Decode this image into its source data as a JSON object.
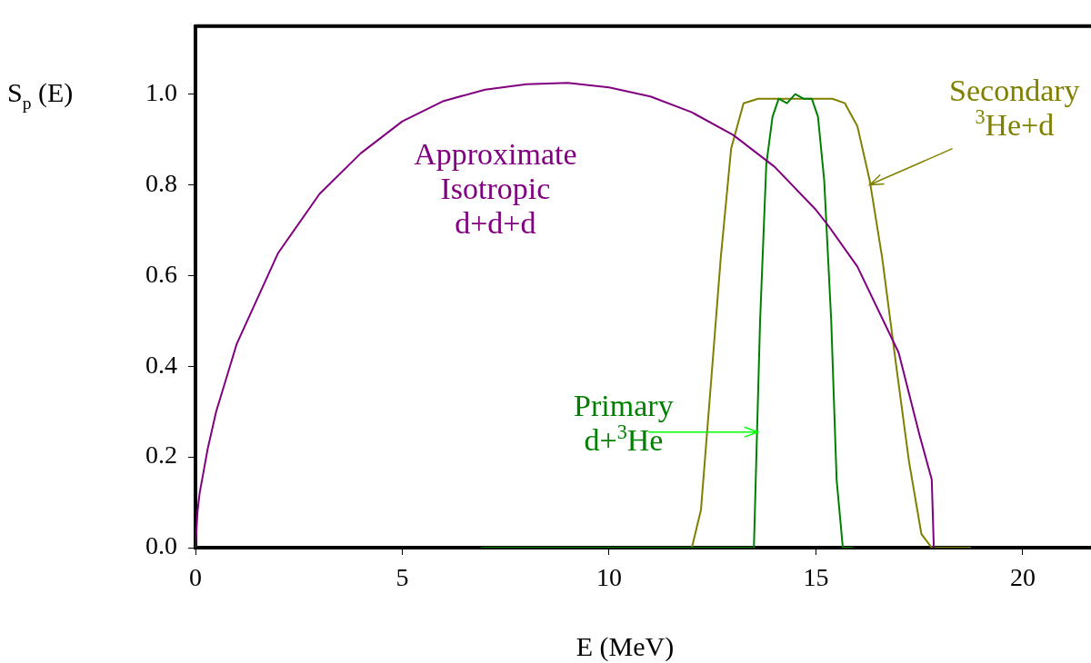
{
  "chart_data": {
    "type": "line",
    "xlabel": "E (MeV)",
    "ylabel": "S$_{p}$ (E)",
    "xlim": [
      0,
      21.65
    ],
    "xticks": [
      0,
      5,
      10,
      15,
      20
    ],
    "ylim": [
      0,
      1.15
    ],
    "yticks": [
      {
        "value": 0,
        "label": "0.0"
      },
      0.2,
      0.4,
      0.6,
      0.8,
      {
        "value": 1,
        "label": "1.0"
      }
    ],
    "grid": false,
    "legend": false,
    "marker": "none",
    "line_style": "solid",
    "series": [
      {
        "name": "Approximate Isotropic d+d+d",
        "color": "#800080",
        "x": [
          0,
          0.05,
          0.1,
          0.3,
          0.5,
          1,
          2,
          3,
          4,
          5,
          6,
          7,
          8,
          9,
          10,
          11,
          12,
          13,
          14,
          15,
          15.3,
          16,
          17,
          17.5,
          17.8,
          17.85
        ],
        "values": [
          0,
          0.08,
          0.12,
          0.22,
          0.3,
          0.45,
          0.65,
          0.78,
          0.87,
          0.94,
          0.985,
          1.01,
          1.022,
          1.025,
          1.015,
          0.995,
          0.96,
          0.91,
          0.84,
          0.745,
          0.71,
          0.62,
          0.43,
          0.25,
          0.15,
          0
        ]
      },
      {
        "name": "Primary d+$^{3}$He",
        "color": "#008000",
        "x": [
          6.9,
          13.5,
          13.65,
          13.8,
          13.95,
          14.1,
          14.3,
          14.5,
          14.7,
          14.9,
          15.05,
          15.2,
          15.37,
          15.5,
          15.65,
          15.9
        ],
        "values": [
          0,
          0,
          0.5,
          0.845,
          0.95,
          0.99,
          0.98,
          1.0,
          0.99,
          0.99,
          0.95,
          0.81,
          0.5,
          0.15,
          0,
          0
        ]
      },
      {
        "name": "Secondary $^{3}$He+d",
        "color": "#808000",
        "x": [
          12,
          12.22,
          12.46,
          12.7,
          12.95,
          13.25,
          13.6,
          14,
          14.5,
          15,
          15.4,
          15.7,
          16,
          16.3,
          16.6,
          16.95,
          17.25,
          17.55,
          17.8,
          18.75
        ],
        "values": [
          0,
          0.083,
          0.36,
          0.64,
          0.88,
          0.98,
          0.99,
          0.99,
          0.99,
          0.99,
          0.99,
          0.98,
          0.93,
          0.81,
          0.64,
          0.395,
          0.19,
          0.03,
          0,
          0
        ]
      }
    ]
  }
}
